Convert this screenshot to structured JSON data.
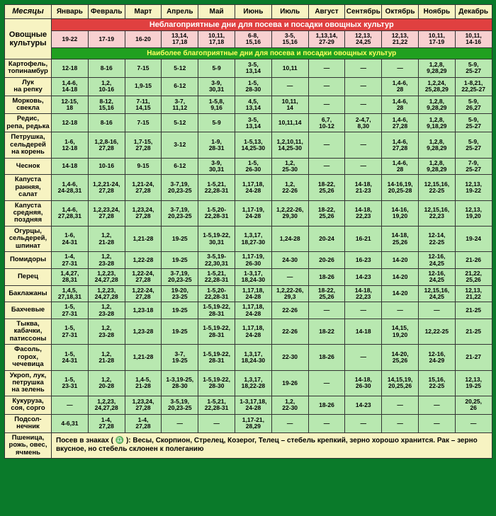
{
  "header_label": "Месяцы",
  "months": [
    "Январь",
    "Февраль",
    "Март",
    "Апрель",
    "Май",
    "Июнь",
    "Июль",
    "Август",
    "Сентябрь",
    "Октябрь",
    "Ноябрь",
    "Декабрь"
  ],
  "veg_label": "Овощные культуры",
  "banner_unfav": "Неблагоприятные дни для посева и посадки овощных культур",
  "banner_fav": "Наиболее благоприятные дни для посева и посадки овощных культур",
  "unfav_row": [
    "19-22",
    "17-19",
    "16-20",
    "13,14,\n17,18",
    "10,11,\n17,18",
    "6-8,\n15,16",
    "3-5,\n15,16",
    "1,13,14,\n27-29",
    "12,13,\n24,25",
    "12,13,\n21,22",
    "10,11,\n17-19",
    "10,11,\n14-16"
  ],
  "rows": [
    {
      "label": "Картофель,\nтопинамбур",
      "cells": [
        "12-18",
        "8-16",
        "7-15",
        "5-12",
        "5-9",
        "3-5,\n13,14",
        "10,11",
        "—",
        "—",
        "—",
        "1,2,8,\n9,28,29",
        "5-9,\n25-27"
      ]
    },
    {
      "label": "Лук\nна репку",
      "cells": [
        "1,4-6,\n14-18",
        "1,2,\n10-16",
        "1,9-15",
        "6-12",
        "3-9,\n30,31",
        "1-5,\n28-30",
        "—",
        "—",
        "—",
        "1,4-6,\n28",
        "1,2,24,\n25,28,29",
        "1-8,21,\n22,25-27"
      ]
    },
    {
      "label": "Морковь,\nсвекла",
      "cells": [
        "12-15,\n18",
        "8-12,\n15,16",
        "7-11,\n14,15",
        "3-7,\n11,12",
        "1-5,8,\n9,16",
        "4,5,\n13,14",
        "10,11,\n14",
        "—",
        "—",
        "1,4-6,\n28",
        "1,2,8,\n9,28,29",
        "5-9,\n26,27"
      ]
    },
    {
      "label": "Редис,\nрепа, редька",
      "cells": [
        "12-18",
        "8-16",
        "7-15",
        "5-12",
        "5-9",
        "3-5,\n13,14",
        "10,11,14",
        "6,7,\n10-12",
        "2-4,7,\n8,30",
        "1,4-6,\n27,28",
        "1,2,8,\n9,18,29",
        "5-9,\n25-27"
      ]
    },
    {
      "label": "Петрушка,\nсельдерей\nна корень",
      "cells": [
        "1-6,\n12-18",
        "1,2,8-16,\n27,28",
        "1,7-15,\n27,28",
        "3-12",
        "1-9,\n28-31",
        "1-5,13,\n14,25-30",
        "1,2,10,11,\n14,25-30",
        "—",
        "—",
        "1,4-6,\n27,28",
        "1,2,8,\n9,28,29",
        "5-9,\n25-27"
      ]
    },
    {
      "label": "Чеснок",
      "cells": [
        "14-18",
        "10-16",
        "9-15",
        "6-12",
        "3-9,\n30,31",
        "1-5,\n26-30",
        "1,2,\n25-30",
        "—",
        "—",
        "1,4-6,\n28",
        "1,2,8,\n9,28,29",
        "7-9,\n25-27"
      ]
    },
    {
      "label": "Капуста\nранняя, салат",
      "cells": [
        "1,4-6,\n24-28,31",
        "1,2,21-24,\n27,28",
        "1,21-24,\n27,28",
        "3-7,19,\n20,23-25",
        "1-5,21,\n22,28-31",
        "1,17,18,\n24-28",
        "1,2,\n22-26",
        "18-22,\n25,26",
        "14-18,\n21-23",
        "14-16,19,\n20,25-28",
        "12,15,16,\n22-25",
        "12,13,\n19-22"
      ]
    },
    {
      "label": "Капуста\nсредняя, поздняя",
      "cells": [
        "1,4-6,\n27,28,31",
        "1,2,23,24,\n27,28",
        "1,23,24,\n27,28",
        "3-7,19,\n20,23-25",
        "1-5,20-\n22,28-31",
        "1,17-19,\n24-28",
        "1,2,22-26,\n29,30",
        "18-22,\n25,26",
        "14-18,\n22,23",
        "14-16,\n19,20",
        "12,15,16,\n22,23",
        "12,13,\n19,20"
      ]
    },
    {
      "label": "Огурцы,\nсельдерей,\nшпинат",
      "cells": [
        "1-6,\n24-31",
        "1,2,\n21-28",
        "1,21-28",
        "19-25",
        "1-5,19-22,\n30,31",
        "1,3,17,\n18,27-30",
        "1,24-28",
        "20-24",
        "16-21",
        "14-18,\n25,26",
        "12-14,\n22-25",
        "19-24"
      ]
    },
    {
      "label": "Помидоры",
      "cells": [
        "1-4,\n27-31",
        "1,2,\n23-28",
        "1,22-28",
        "19-25",
        "3-5,19-\n22,30,31",
        "1,17-19,\n26-30",
        "24-30",
        "20-26",
        "16-23",
        "14-20",
        "12-16,\n24,25",
        "21-26"
      ]
    },
    {
      "label": "Перец",
      "cells": [
        "1,4,27,\n28,31",
        "1,2,23,\n24,27,28",
        "1,22-24,\n27,28",
        "3-7,19,\n20,23-25",
        "1-5,21,\n22,28-31",
        "1-3,17,\n18,24-30",
        "—",
        "18-26",
        "14-23",
        "14-20",
        "12-16,\n24,25",
        "21,22,\n25,26"
      ]
    },
    {
      "label": "Баклажаны",
      "cells": [
        "1,4,5,\n27,18,31",
        "1,2,23,\n24,27,28",
        "1,22-24,\n27,28",
        "19-20,\n23-25",
        "1-5,20-\n22,28-31",
        "1,17,18,\n24-28",
        "1,2,22-26,\n29,3",
        "18-22,\n25,26",
        "14-18,\n22,23",
        "14-20",
        "12,15,16,\n24,25",
        "12,13,\n21,22"
      ]
    },
    {
      "label": "Бахчевые",
      "cells": [
        "1-5,\n27-31",
        "1,2,\n23-28",
        "1,23-18",
        "19-25",
        "1-5,19-22,\n28-31",
        "1,17,18,\n24-28",
        "22-26",
        "—",
        "—",
        "—",
        "—",
        "21-25"
      ]
    },
    {
      "label": "Тыква,\nкабачки,\nпатиссоны",
      "cells": [
        "1-5,\n27-31",
        "1,2,\n23-28",
        "1,23-28",
        "19-25",
        "1-5,19-22,\n28-31",
        "1,17,18,\n24-28",
        "22-26",
        "18-22",
        "14-18",
        "14,15,\n19,20",
        "12,22-25",
        "21-25"
      ]
    },
    {
      "label": "Фасоль,\nгорох,\nчечевица",
      "cells": [
        "1-5,\n24-31",
        "1,2,\n21-28",
        "1,21-28",
        "3-7,\n19-25",
        "1-5,19-22,\n28-31",
        "1,3,17,\n18,24-30",
        "22-30",
        "18-26",
        "—",
        "14-20,\n25,26",
        "12-16,\n24-29",
        "21-27"
      ]
    },
    {
      "label": "Укроп, лук,\nпетрушка\nна зелень",
      "cells": [
        "1-5,\n23-31",
        "1,2,\n20-28",
        "1,4-5,\n21-28",
        "1-3,19-25,\n28-30",
        "1-5,19-22,\n28-30",
        "1,3,17,\n18,22-28",
        "19-26",
        "—",
        "14-18,\n26-30",
        "14,15,19,\n20,25,26",
        "15,16,\n22-25",
        "12,13,\n19-25"
      ]
    },
    {
      "label": "Кукуруза,\nсоя, сорго",
      "cells": [
        "—",
        "1,2,23,\n24,27,28",
        "1,23,24,\n27,28",
        "3-5,19,\n20,23-25",
        "1-5,21,\n22,28-31",
        "1-3,17,18,\n24-28",
        "1,2,\n22-30",
        "18-26",
        "14-23",
        "—",
        "—",
        "20,25,\n26"
      ]
    },
    {
      "label": "Подсол-\nнечник",
      "cells": [
        "4-6,31",
        "1-4,\n27,28",
        "1-4,\n27,28",
        "—",
        "—",
        "1,17-21,\n28,29",
        "—",
        "—",
        "—",
        "—",
        "—",
        "—"
      ]
    }
  ],
  "footnote_label": "Пшеница,\nрожь, овес,\nячмень",
  "footnote_text": "Посев в знаках ( ♎ ): Весы, Скорпион, Стрелец, Козерог, Телец – стебель крепкий, зерно хорошо хранится. Рак – зерно вкусное, но стебель склонен к полеганию",
  "colors": {
    "frame": "#0a7a2a",
    "header_bg": "#f7f3c2",
    "fav_bg": "#b8e8b0",
    "unfav_bg": "#f8d0d0",
    "banner_red": "#e04040",
    "banner_green": "#20a020"
  }
}
